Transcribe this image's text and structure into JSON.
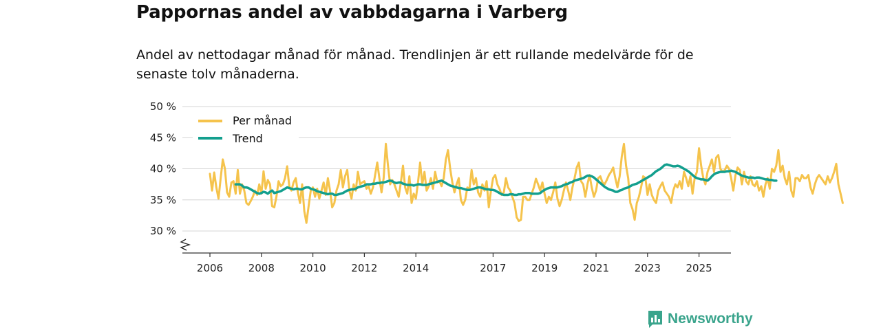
{
  "header": {
    "title": "Pappornas andel av vabbdagarna i Varberg",
    "subtitle": "Andel av nettodagar månad för månad. Trendlinjen är ett rullande medelvärde för de senaste tolv månaderna."
  },
  "brand": {
    "name": "Newsworthy",
    "color": "#3aa48c",
    "icon": "newsworthy-logo-icon"
  },
  "chart_data": {
    "type": "line",
    "title": "Pappornas andel av vabbdagarna i Varberg",
    "xlabel": "",
    "ylabel": "",
    "xlim": [
      2005.8,
      2025.9
    ],
    "ylim": [
      27,
      50
    ],
    "grid": true,
    "axis_break": true,
    "legend_position": "top-left",
    "y_ticks": [
      50,
      45,
      40,
      35,
      30
    ],
    "y_tick_labels": [
      "50 %",
      "45 %",
      "40 %",
      "35 %",
      "30 %"
    ],
    "x_ticks": [
      2006,
      2008,
      2010,
      2012,
      2014,
      2017,
      2019,
      2021,
      2023,
      2025
    ],
    "x_tick_labels": [
      "2006",
      "2008",
      "2010",
      "2012",
      "2014",
      "2017",
      "2019",
      "2021",
      "2023",
      "2025"
    ],
    "series": [
      {
        "name": "Per månad",
        "color": "#f5c34c",
        "x_start": 2006.0,
        "step": 0.08333,
        "values": [
          39.2,
          36.5,
          39.4,
          37.0,
          35.2,
          38.5,
          41.5,
          40.0,
          36.2,
          35.5,
          37.8,
          38.0,
          36.0,
          39.8,
          36.0,
          37.5,
          36.5,
          34.5,
          34.2,
          34.8,
          35.5,
          36.5,
          35.8,
          37.5,
          36.0,
          39.6,
          36.8,
          38.2,
          37.5,
          34.0,
          33.8,
          35.5,
          38.0,
          37.2,
          37.5,
          38.5,
          40.4,
          37.2,
          36.5,
          37.8,
          38.5,
          36.2,
          34.5,
          37.5,
          33.2,
          31.3,
          34.0,
          36.5,
          37.0,
          35.5,
          36.8,
          35.2,
          36.5,
          37.8,
          35.8,
          38.5,
          36.5,
          33.8,
          34.5,
          36.5,
          37.5,
          39.8,
          37.0,
          38.8,
          39.8,
          36.5,
          35.2,
          37.5,
          36.5,
          39.5,
          37.5,
          37.8,
          38.0,
          36.8,
          37.2,
          36.0,
          37.0,
          39.0,
          41.0,
          38.5,
          36.2,
          38.5,
          44.0,
          40.5,
          37.5,
          38.2,
          37.5,
          36.5,
          35.5,
          37.8,
          40.5,
          37.0,
          36.0,
          38.8,
          34.5,
          36.0,
          35.2,
          37.8,
          41.0,
          37.5,
          39.5,
          36.5,
          37.2,
          38.5,
          36.8,
          39.5,
          37.8,
          38.0,
          37.2,
          38.5,
          41.5,
          43.0,
          40.0,
          37.8,
          36.2,
          37.5,
          38.5,
          35.0,
          34.2,
          35.0,
          37.0,
          36.8,
          39.8,
          37.5,
          38.5,
          36.2,
          35.5,
          37.5,
          36.5,
          38.0,
          33.8,
          36.5,
          38.5,
          39.0,
          37.5,
          36.8,
          35.8,
          36.2,
          38.5,
          37.0,
          36.5,
          35.5,
          34.5,
          32.2,
          31.6,
          31.8,
          35.5,
          35.5,
          35.0,
          35.0,
          36.0,
          37.0,
          38.4,
          37.5,
          36.5,
          37.8,
          36.0,
          34.5,
          35.5,
          35.0,
          36.2,
          37.8,
          35.2,
          34.0,
          35.0,
          36.5,
          37.8,
          36.5,
          35.0,
          37.0,
          38.5,
          40.2,
          41.0,
          38.0,
          37.5,
          35.5,
          37.5,
          39.0,
          37.0,
          35.5,
          36.5,
          38.5,
          38.8,
          37.8,
          37.5,
          38.2,
          39.0,
          39.5,
          40.2,
          38.5,
          37.0,
          38.8,
          42.0,
          44.0,
          40.5,
          38.5,
          34.5,
          33.5,
          31.8,
          34.5,
          35.5,
          37.0,
          38.8,
          38.5,
          35.8,
          37.5,
          35.8,
          35.0,
          34.5,
          36.5,
          37.2,
          37.8,
          36.5,
          36.0,
          35.5,
          34.5,
          36.5,
          37.5,
          37.0,
          38.0,
          36.8,
          39.5,
          38.5,
          37.2,
          38.8,
          36.0,
          38.5,
          39.5,
          43.3,
          40.5,
          38.5,
          37.5,
          39.5,
          40.5,
          41.5,
          39.5,
          41.8,
          42.2,
          40.0,
          39.5,
          39.8,
          40.5,
          40.0,
          38.5,
          36.5,
          39.0,
          40.2,
          39.8,
          37.5,
          39.5,
          38.0,
          37.5,
          38.8,
          37.5,
          37.2,
          38.0,
          36.5,
          37.2,
          35.5,
          37.5,
          38.5,
          36.8,
          40.0,
          39.5,
          40.5,
          43.0,
          39.5,
          40.5,
          38.5,
          37.5,
          39.5,
          36.5,
          35.5,
          38.5,
          38.5,
          38.0,
          39.0,
          38.5,
          38.5,
          39.0,
          37.0,
          36.0,
          37.5,
          38.5,
          39.0,
          38.5,
          38.0,
          37.5,
          38.8,
          37.8,
          38.5,
          39.5,
          40.8,
          37.5,
          36.0,
          34.5
        ]
      },
      {
        "name": "Trend",
        "color": "#139f8e",
        "x_start": 2007.0,
        "step": 0.08333,
        "values": [
          37.5,
          37.5,
          37.5,
          37.3,
          37.0,
          37.0,
          36.9,
          36.7,
          36.5,
          36.3,
          36.1,
          36.0,
          36.1,
          36.3,
          36.2,
          36.0,
          36.3,
          36.5,
          36.1,
          36.2,
          36.3,
          36.4,
          36.6,
          36.8,
          37.0,
          36.9,
          36.8,
          36.7,
          36.8,
          36.8,
          36.7,
          36.7,
          36.9,
          37.0,
          37.0,
          36.8,
          36.7,
          36.6,
          36.4,
          36.3,
          36.2,
          36.1,
          36.0,
          35.9,
          36.0,
          36.0,
          35.8,
          35.8,
          35.9,
          36.0,
          36.1,
          36.3,
          36.5,
          36.6,
          36.7,
          36.7,
          36.8,
          37.0,
          37.1,
          37.2,
          37.3,
          37.5,
          37.5,
          37.5,
          37.6,
          37.6,
          37.7,
          37.7,
          37.8,
          37.8,
          37.9,
          38.0,
          38.1,
          38.0,
          37.8,
          37.7,
          37.8,
          37.8,
          37.6,
          37.5,
          37.4,
          37.4,
          37.4,
          37.3,
          37.4,
          37.5,
          37.5,
          37.4,
          37.4,
          37.4,
          37.5,
          37.6,
          37.7,
          37.8,
          37.9,
          38.0,
          38.1,
          37.9,
          37.7,
          37.5,
          37.3,
          37.2,
          37.1,
          37.0,
          36.9,
          36.9,
          36.8,
          36.7,
          36.6,
          36.6,
          36.7,
          36.8,
          36.9,
          37.0,
          37.0,
          36.9,
          36.8,
          36.7,
          36.7,
          36.6,
          36.6,
          36.5,
          36.3,
          36.1,
          35.9,
          35.8,
          35.8,
          35.8,
          35.9,
          35.9,
          35.8,
          35.8,
          35.9,
          35.9,
          36.0,
          36.1,
          36.1,
          36.1,
          36.0,
          36.0,
          36.0,
          36.0,
          36.1,
          36.4,
          36.6,
          36.8,
          36.9,
          37.0,
          37.0,
          37.0,
          37.0,
          37.1,
          37.2,
          37.4,
          37.5,
          37.6,
          37.8,
          37.9,
          38.1,
          38.2,
          38.3,
          38.4,
          38.5,
          38.7,
          38.9,
          38.9,
          38.8,
          38.6,
          38.3,
          38.0,
          37.7,
          37.4,
          37.1,
          36.9,
          36.7,
          36.6,
          36.5,
          36.3,
          36.3,
          36.5,
          36.6,
          36.8,
          36.9,
          37.0,
          37.2,
          37.4,
          37.5,
          37.6,
          37.8,
          38.0,
          38.2,
          38.4,
          38.6,
          38.8,
          39.0,
          39.3,
          39.6,
          39.8,
          40.0,
          40.3,
          40.6,
          40.7,
          40.6,
          40.5,
          40.4,
          40.4,
          40.5,
          40.4,
          40.2,
          40.0,
          39.8,
          39.6,
          39.3,
          39.0,
          38.7,
          38.5,
          38.4,
          38.3,
          38.3,
          38.2,
          38.1,
          38.4,
          38.8,
          39.1,
          39.3,
          39.4,
          39.5,
          39.5,
          39.5,
          39.6,
          39.6,
          39.7,
          39.6,
          39.5,
          39.3,
          39.1,
          38.9,
          38.8,
          38.7,
          38.6,
          38.6,
          38.6,
          38.5,
          38.6,
          38.6,
          38.5,
          38.4,
          38.3,
          38.3,
          38.2,
          38.2,
          38.1,
          38.1
        ]
      }
    ]
  }
}
